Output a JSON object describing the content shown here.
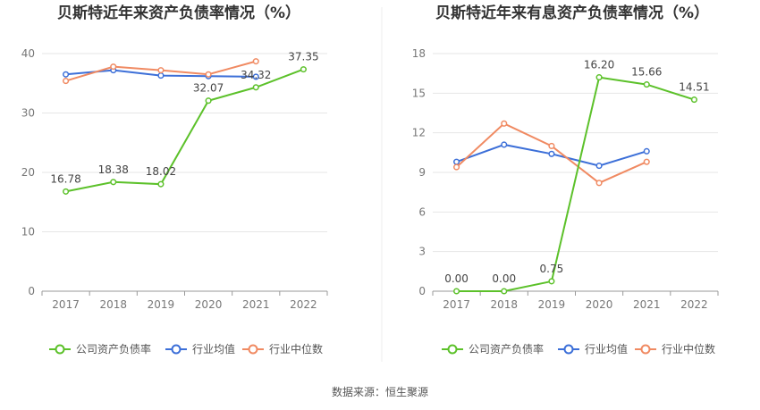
{
  "source": "数据来源：恒生聚源",
  "colors": {
    "company": "#5cc12a",
    "industry_avg": "#3c6fd8",
    "industry_median": "#f08a62",
    "grid": "#e6e6e6",
    "axis": "#999999"
  },
  "chart_data": [
    {
      "type": "line",
      "title": "贝斯特近年来资产负债率情况（%）",
      "categories": [
        "2017",
        "2018",
        "2019",
        "2020",
        "2021",
        "2022"
      ],
      "ylim": [
        0,
        40
      ],
      "yticks": [
        0,
        10,
        20,
        30,
        40
      ],
      "grid": true,
      "legend_position": "bottom",
      "series": [
        {
          "name": "公司资产负债率",
          "key": "company",
          "values": [
            16.78,
            18.38,
            18.02,
            32.07,
            34.32,
            37.35
          ],
          "labels": [
            "16.78",
            "18.38",
            "18.02",
            "32.07",
            "34.32",
            "37.35"
          ]
        },
        {
          "name": "行业均值",
          "key": "industry_avg",
          "values": [
            36.5,
            37.2,
            36.3,
            36.2,
            36.1,
            null
          ]
        },
        {
          "name": "行业中位数",
          "key": "industry_median",
          "values": [
            35.4,
            37.8,
            37.2,
            36.5,
            38.7,
            null
          ]
        }
      ]
    },
    {
      "type": "line",
      "title": "贝斯特近年来有息资产负债率情况（%）",
      "categories": [
        "2017",
        "2018",
        "2019",
        "2020",
        "2021",
        "2022"
      ],
      "ylim": [
        0,
        18
      ],
      "yticks": [
        0,
        3,
        6,
        9,
        12,
        15,
        18
      ],
      "grid": true,
      "legend_position": "bottom",
      "series": [
        {
          "name": "公司资产负债率",
          "key": "company",
          "values": [
            0.0,
            0.0,
            0.75,
            16.2,
            15.66,
            14.51
          ],
          "labels": [
            "0.00",
            "0.00",
            "0.75",
            "16.20",
            "15.66",
            "14.51"
          ]
        },
        {
          "name": "行业均值",
          "key": "industry_avg",
          "values": [
            9.8,
            11.1,
            10.4,
            9.5,
            10.6,
            null
          ]
        },
        {
          "name": "行业中位数",
          "key": "industry_median",
          "values": [
            9.4,
            12.7,
            11.0,
            8.2,
            9.8,
            null
          ]
        }
      ]
    }
  ]
}
